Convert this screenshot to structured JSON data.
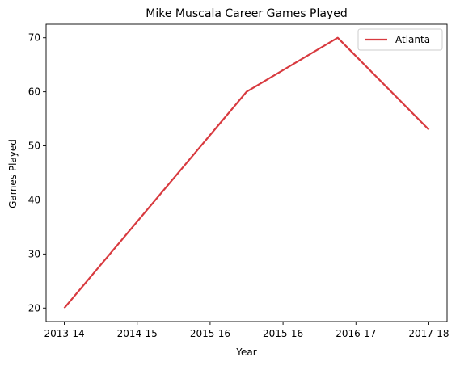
{
  "chart_data": {
    "type": "line",
    "title": "Mike Muscala Career Games Played",
    "xlabel": "Year",
    "ylabel": "Games Played",
    "x_tick_labels": [
      "2013-14",
      "2014-15",
      "2015-16",
      "2015-16",
      "2016-17",
      "2017-18"
    ],
    "x_tick_positions": [
      0,
      1,
      2,
      3,
      4,
      5
    ],
    "series": [
      {
        "name": "Atlanta",
        "color": "#d83a3f",
        "points": [
          {
            "x": 0,
            "y": 20
          },
          {
            "x": 2.5,
            "y": 60
          },
          {
            "x": 3.75,
            "y": 70
          },
          {
            "x": 5,
            "y": 53
          }
        ]
      }
    ],
    "xlim": [
      -0.25,
      5.25
    ],
    "ylim": [
      17.5,
      72.5
    ],
    "y_ticks": [
      20,
      30,
      40,
      50,
      60,
      70
    ],
    "grid": false,
    "legend_position": "top-right"
  }
}
